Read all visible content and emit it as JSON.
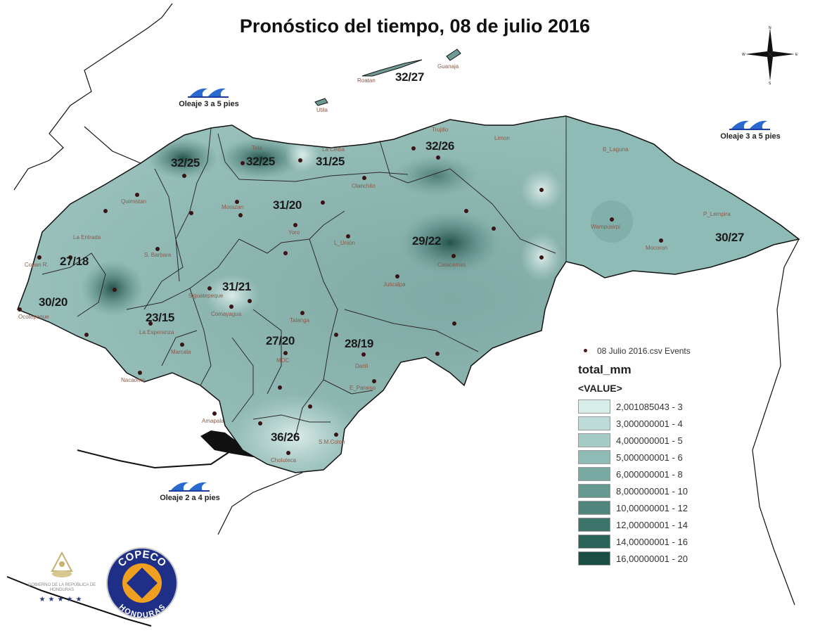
{
  "title": "Pronóstico del tiempo, 08 de julio 2016",
  "compass": {
    "n": "N",
    "s": "S",
    "e": "E",
    "w": "W"
  },
  "temperatures": [
    {
      "id": "islas",
      "text": "32/27"
    },
    {
      "id": "cortes-w",
      "text": "32/25"
    },
    {
      "id": "atlantida-w",
      "text": "32/25"
    },
    {
      "id": "atlantida-e",
      "text": "31/25"
    },
    {
      "id": "colon",
      "text": "32/26"
    },
    {
      "id": "yoro",
      "text": "31/20"
    },
    {
      "id": "olancho",
      "text": "29/22"
    },
    {
      "id": "gracias-a-dios",
      "text": "30/27"
    },
    {
      "id": "copan",
      "text": "27/18"
    },
    {
      "id": "ocotepeque",
      "text": "30/20"
    },
    {
      "id": "comayagua",
      "text": "31/21"
    },
    {
      "id": "intibuca",
      "text": "23/15"
    },
    {
      "id": "francisco-morazan",
      "text": "27/20"
    },
    {
      "id": "el-paraiso",
      "text": "28/19"
    },
    {
      "id": "choluteca",
      "text": "36/26"
    }
  ],
  "cities": [
    "Roatan",
    "Guanaja",
    "Utila",
    "Trujillo",
    "Limon",
    "Tela",
    "La Ceiba",
    "Olanchito",
    "Quimistan",
    "La Entrada",
    "S. Barbara",
    "Copan R.",
    "Ocotepeque",
    "Siguatepeque",
    "Comayagua",
    "La Esperanza",
    "Marcala",
    "Nacaome",
    "Amapala",
    "Choluteca",
    "S.M.Colon",
    "MDC",
    "Talanga",
    "Danli",
    "E_Paraiso",
    "Yoro",
    "Morazan",
    "L_Unión",
    "Catacamas",
    "Juticalpa",
    "B_Laguna",
    "Wampusirpi",
    "Mocoron",
    "P_Lempira"
  ],
  "waves": [
    {
      "id": "caribe-oeste",
      "label": "Oleaje 3 a 5 pies"
    },
    {
      "id": "caribe-este",
      "label": "Oleaje 3 a 5 pies"
    },
    {
      "id": "pacifico",
      "label": "Oleaje 2 a 4 pies"
    }
  ],
  "legend": {
    "events_label": "08 Julio 2016.csv Events",
    "field": "total_mm",
    "value_header": "<VALUE>",
    "classes": [
      {
        "label": "2,001085043 - 3",
        "color": "#d8eeeb"
      },
      {
        "label": "3,000000001 - 4",
        "color": "#bddcd9"
      },
      {
        "label": "4,000000001 - 5",
        "color": "#a5cbc7"
      },
      {
        "label": "5,000000001 - 6",
        "color": "#8fbbb6"
      },
      {
        "label": "6,000000001 - 8",
        "color": "#78a9a3"
      },
      {
        "label": "8,000000001 - 10",
        "color": "#649890"
      },
      {
        "label": "10,00000001 - 12",
        "color": "#4f857d"
      },
      {
        "label": "12,00000001 - 14",
        "color": "#3c746b"
      },
      {
        "label": "14,00000001 - 16",
        "color": "#2b6259"
      },
      {
        "label": "16,00000001 - 20",
        "color": "#1a4d44"
      }
    ]
  },
  "logos": {
    "government": "GOBIERNO DE LA REPÚBLICA DE HONDURAS",
    "copeco_top": "COPECO",
    "copeco_bottom": "HONDURAS"
  }
}
